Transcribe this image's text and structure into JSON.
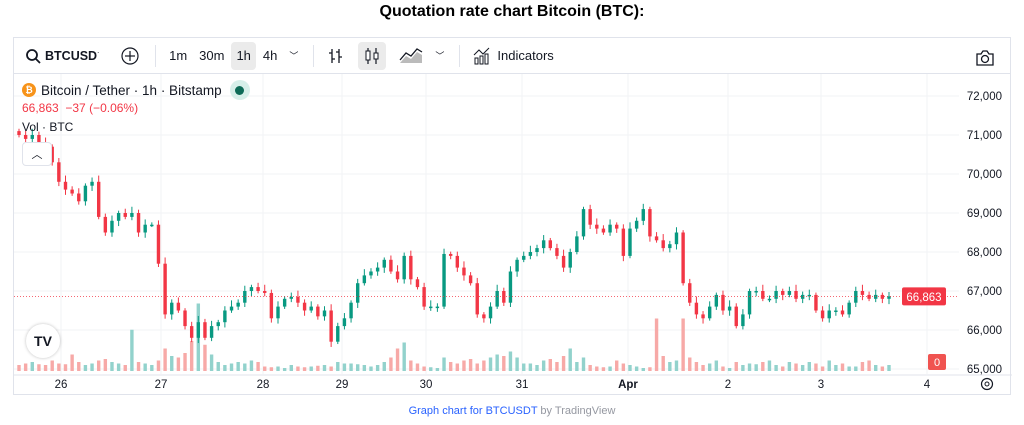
{
  "page_title": "Quotation rate chart Bitcoin (BTC):",
  "toolbar": {
    "symbol": "BTCUSD",
    "intervals": [
      "1m",
      "30m",
      "1h",
      "4h"
    ],
    "active_interval": "1h",
    "indicators": "Indicators"
  },
  "legend": {
    "title": "Bitcoin / Tether · 1h · Bitstamp",
    "price": "66,863",
    "change": "−37 (−0.06%)",
    "volume_label": "Vol · BTC"
  },
  "colors": {
    "up": "#089981",
    "down": "#f23645",
    "vol_up": "#92d2cc",
    "vol_down": "#f7a9a7"
  },
  "chart_data": {
    "type": "candlestick",
    "y_ticks": [
      "72,000",
      "71,000",
      "70,000",
      "69,000",
      "68,000",
      "67,000",
      "66,000",
      "65,000"
    ],
    "ylim": [
      65000,
      72000
    ],
    "x_ticks": [
      "26",
      "27",
      "28",
      "29",
      "30",
      "31",
      "Apr",
      "2",
      "3",
      "4"
    ],
    "last_price": 66863,
    "last_price_label": "66,863",
    "volume_label_value": "0",
    "closes": [
      71000,
      70900,
      71000,
      70800,
      70700,
      70300,
      69800,
      69600,
      69500,
      69300,
      69700,
      69800,
      68900,
      68500,
      68800,
      69000,
      68900,
      69000,
      68500,
      68700,
      68700,
      67700,
      66400,
      66700,
      66500,
      66100,
      65800,
      66200,
      65800,
      66100,
      66200,
      66500,
      66600,
      66700,
      67000,
      67100,
      67000,
      66950,
      66300,
      66600,
      66800,
      66850,
      66700,
      66500,
      66600,
      66350,
      66500,
      65700,
      66100,
      66300,
      66700,
      67200,
      67400,
      67500,
      67600,
      67800,
      67500,
      67300,
      67900,
      67300,
      67100,
      66600,
      66600,
      66600,
      67950,
      67900,
      67600,
      67400,
      67200,
      66400,
      66300,
      66600,
      67000,
      66700,
      67500,
      67800,
      67900,
      68000,
      68100,
      68300,
      68100,
      67900,
      67600,
      68000,
      68400,
      69100,
      68700,
      68600,
      68500,
      68700,
      68600,
      67900,
      68600,
      68800,
      69100,
      68400,
      68300,
      68100,
      68200,
      68500,
      67200,
      66700,
      66400,
      66300,
      66600,
      66900,
      66500,
      66600,
      66100,
      66400,
      67000,
      67000,
      66800,
      66800,
      67000,
      66900,
      67000,
      66800,
      66900,
      66900,
      66500,
      66300,
      66500,
      66500,
      66400,
      66700,
      67000,
      66900,
      66800,
      66900,
      66800,
      66863
    ],
    "volumes": [
      8,
      10,
      12,
      9,
      8,
      14,
      10,
      9,
      22,
      12,
      8,
      10,
      14,
      16,
      12,
      10,
      8,
      55,
      12,
      10,
      8,
      14,
      30,
      20,
      18,
      24,
      40,
      90,
      35,
      22,
      12,
      8,
      10,
      12,
      10,
      14,
      12,
      6,
      5,
      6,
      4,
      8,
      6,
      5,
      6,
      7,
      8,
      6,
      12,
      10,
      10,
      9,
      8,
      6,
      8,
      12,
      18,
      30,
      38,
      14,
      10,
      6,
      5,
      4,
      18,
      12,
      10,
      14,
      16,
      10,
      14,
      18,
      22,
      20,
      26,
      18,
      10,
      10,
      8,
      14,
      16,
      12,
      20,
      30,
      12,
      18,
      8,
      6,
      5,
      6,
      14,
      10,
      8,
      6,
      4,
      5,
      70,
      20,
      12,
      14,
      70,
      18,
      12,
      8,
      10,
      14,
      6,
      4,
      12,
      8,
      10,
      9,
      12,
      14,
      8,
      6,
      12,
      10,
      8,
      12,
      10,
      6,
      14,
      8,
      10,
      6,
      6,
      12,
      14,
      8,
      6,
      8
    ]
  },
  "caption": {
    "link": "Graph chart for BTCUSDT",
    "by": "by TradingView"
  }
}
